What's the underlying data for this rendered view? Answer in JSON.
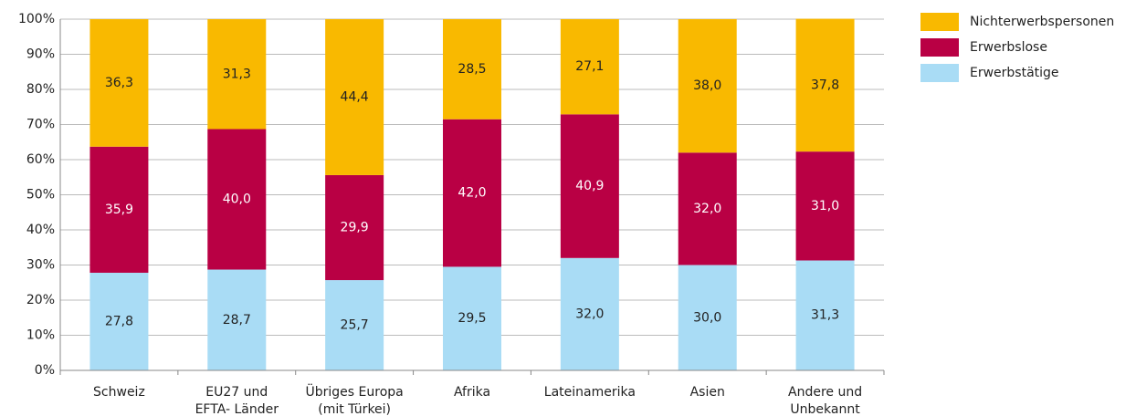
{
  "chart_data": {
    "type": "stacked_bar",
    "categories": [
      [
        "Schweiz"
      ],
      [
        "EU27 und",
        "EFTA- Länder"
      ],
      [
        "Übriges Europa",
        "(mit Türkei)"
      ],
      [
        "Afrika"
      ],
      [
        "Lateinamerika"
      ],
      [
        "Asien"
      ],
      [
        "Andere und",
        "Unbekannt"
      ]
    ],
    "series": [
      {
        "name": "Erwerbstätige",
        "color": "#a9dcf5",
        "values": [
          27.8,
          28.7,
          25.7,
          29.5,
          32.0,
          30.0,
          31.3
        ],
        "value_labels": [
          "27,8",
          "28,7",
          "25,7",
          "29,5",
          "32,0",
          "30,0",
          "31,3"
        ]
      },
      {
        "name": "Erwerbslose",
        "color": "#b90044",
        "values": [
          35.9,
          40.0,
          29.9,
          42.0,
          40.9,
          32.0,
          31.0
        ],
        "value_labels": [
          "35,9",
          "40,0",
          "29,9",
          "42,0",
          "40,9",
          "32,0",
          "31,0"
        ]
      },
      {
        "name": "Nichterwerbspersonen",
        "color": "#f9b900",
        "values": [
          36.3,
          31.3,
          44.4,
          28.5,
          27.1,
          38.0,
          37.8
        ],
        "value_labels": [
          "36,3",
          "31,3",
          "44,4",
          "28,5",
          "27,1",
          "38,0",
          "37,8"
        ]
      }
    ],
    "ylim": [
      0,
      100
    ],
    "yticks": [
      {
        "value": 0,
        "label": "0%"
      },
      {
        "value": 10,
        "label": "10%"
      },
      {
        "value": 20,
        "label": "20%"
      },
      {
        "value": 30,
        "label": "30%"
      },
      {
        "value": 40,
        "label": "40%"
      },
      {
        "value": 50,
        "label": "50%"
      },
      {
        "value": 60,
        "label": "60%"
      },
      {
        "value": 70,
        "label": "70%"
      },
      {
        "value": 80,
        "label": "80%"
      },
      {
        "value": 90,
        "label": "90%"
      },
      {
        "value": 100,
        "label": "100%"
      }
    ],
    "grid": true,
    "legend": "right"
  }
}
